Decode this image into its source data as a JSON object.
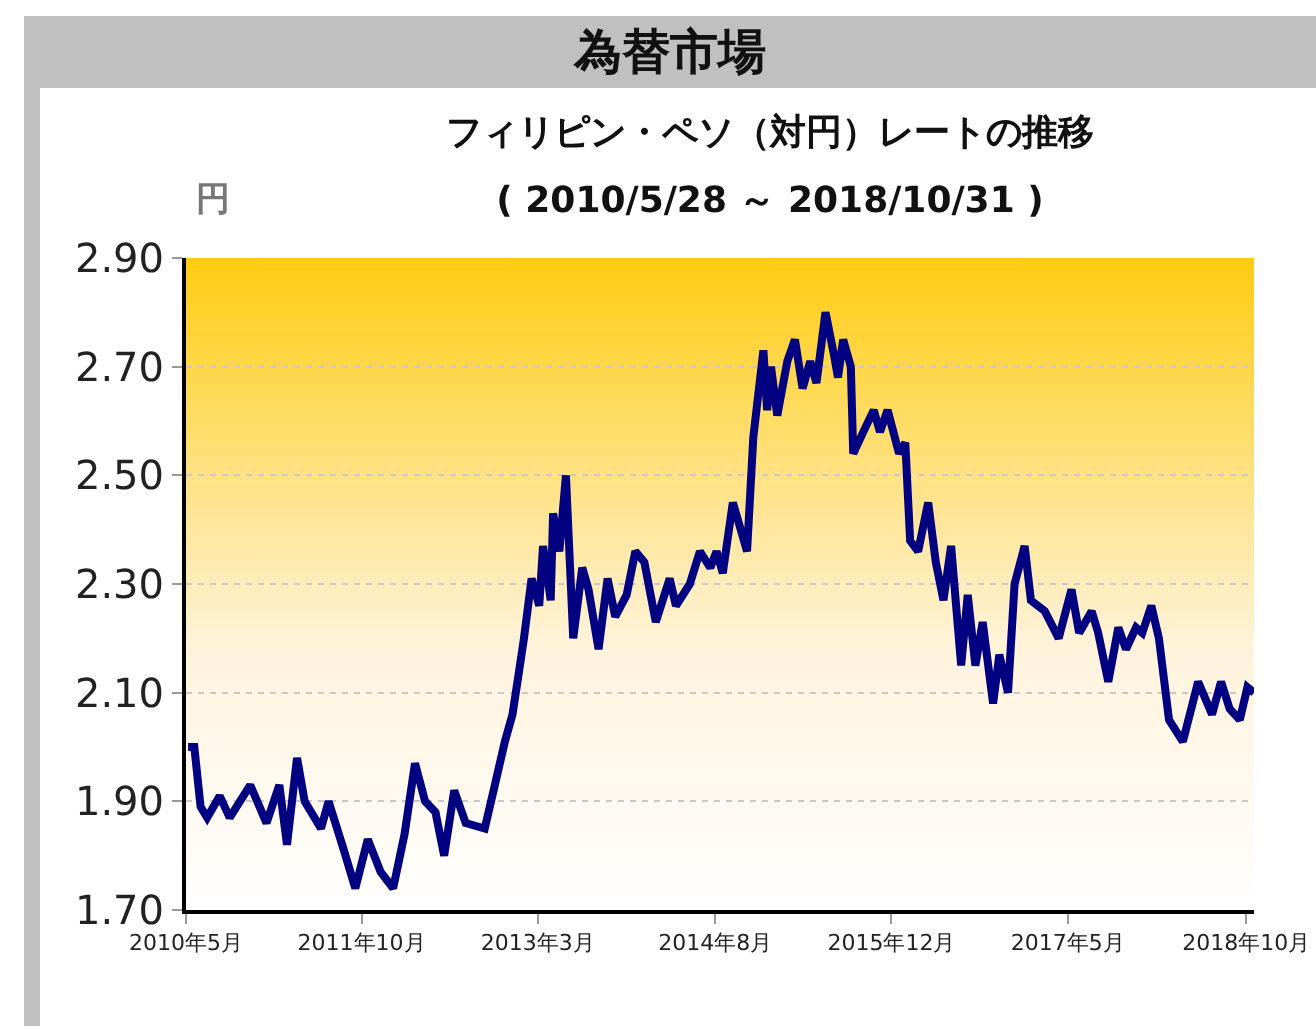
{
  "chart_data": {
    "type": "line",
    "title": "為替市場",
    "subtitle": "フィリピン・ペソ（対円）レートの推移\n( 2010/5/28 ～ 2018/10/31 )",
    "ylabel": "円",
    "x": [
      "2010-06-03",
      "2010-06-21",
      "2010-07-09",
      "2010-07-28",
      "2010-09-02",
      "2010-10-01",
      "2010-11-29",
      "2011-01-15",
      "2011-02-21",
      "2011-03-15",
      "2011-04-13",
      "2011-05-05",
      "2011-06-21",
      "2011-07-13",
      "2011-08-26",
      "2011-09-28",
      "2011-11-03",
      "2011-12-10",
      "2012-01-15",
      "2012-02-17",
      "2012-03-18",
      "2012-04-16",
      "2012-05-16",
      "2012-06-10",
      "2012-07-09",
      "2012-08-11",
      "2012-10-05",
      "2012-11-03",
      "2012-12-02",
      "2012-12-24",
      "2013-01-12",
      "2013-01-26",
      "2013-02-17",
      "2013-03-11",
      "2013-03-22",
      "2013-04-13",
      "2013-04-20",
      "2013-05-08",
      "2013-05-27",
      "2013-06-17",
      "2013-07-13",
      "2013-07-31",
      "2013-08-29",
      "2013-09-24",
      "2013-10-16",
      "2013-11-18",
      "2013-12-13",
      "2014-01-08",
      "2014-02-10",
      "2014-03-22",
      "2014-04-09",
      "2014-05-19",
      "2014-06-17",
      "2014-07-17",
      "2014-08-04",
      "2014-08-22",
      "2014-09-20",
      "2014-10-31",
      "2014-11-18",
      "2014-12-17",
      "2014-12-28",
      "2015-01-08",
      "2015-01-26",
      "2015-02-24",
      "2015-03-18",
      "2015-04-09",
      "2015-05-01",
      "2015-05-19",
      "2015-06-14",
      "2015-07-09",
      "2015-07-20",
      "2015-08-04",
      "2015-08-26",
      "2015-09-02",
      "2015-10-01",
      "2015-10-31",
      "2015-11-18",
      "2015-12-10",
      "2016-01-12",
      "2016-01-30",
      "2016-02-13",
      "2016-03-07",
      "2016-04-05",
      "2016-04-27",
      "2016-05-19",
      "2016-06-10",
      "2016-07-09",
      "2016-07-28",
      "2016-08-19",
      "2016-09-09",
      "2016-10-09",
      "2016-10-27",
      "2016-11-21",
      "2016-12-10",
      "2017-01-08",
      "2017-01-26",
      "2017-03-07",
      "2017-04-16",
      "2017-05-23",
      "2017-06-14",
      "2017-07-20",
      "2017-08-08",
      "2017-09-06",
      "2017-10-05",
      "2017-10-27",
      "2017-11-25",
      "2017-12-13",
      "2018-01-08",
      "2018-01-30",
      "2018-02-28",
      "2018-04-09",
      "2018-05-23",
      "2018-07-02",
      "2018-07-28",
      "2018-08-22",
      "2018-09-20",
      "2018-10-12",
      "2018-10-31"
    ],
    "series": [
      {
        "color": "#000080",
        "values": [
          2.0,
          2.0,
          1.89,
          1.87,
          1.91,
          1.87,
          1.93,
          1.86,
          1.93,
          1.82,
          1.98,
          1.9,
          1.85,
          1.9,
          1.81,
          1.74,
          1.83,
          1.77,
          1.74,
          1.84,
          1.97,
          1.9,
          1.88,
          1.8,
          1.92,
          1.86,
          1.85,
          1.93,
          2.01,
          2.06,
          2.14,
          2.2,
          2.31,
          2.26,
          2.37,
          2.27,
          2.43,
          2.36,
          2.5,
          2.2,
          2.33,
          2.29,
          2.18,
          2.31,
          2.24,
          2.28,
          2.36,
          2.34,
          2.23,
          2.31,
          2.26,
          2.3,
          2.36,
          2.33,
          2.36,
          2.32,
          2.45,
          2.36,
          2.57,
          2.73,
          2.62,
          2.7,
          2.61,
          2.71,
          2.75,
          2.66,
          2.71,
          2.67,
          2.8,
          2.72,
          2.68,
          2.75,
          2.7,
          2.54,
          2.58,
          2.62,
          2.58,
          2.62,
          2.54,
          2.56,
          2.38,
          2.36,
          2.45,
          2.34,
          2.27,
          2.37,
          2.15,
          2.28,
          2.15,
          2.23,
          2.08,
          2.17,
          2.1,
          2.3,
          2.37,
          2.27,
          2.25,
          2.2,
          2.29,
          2.21,
          2.25,
          2.21,
          2.12,
          2.22,
          2.18,
          2.22,
          2.21,
          2.26,
          2.2,
          2.05,
          2.01,
          2.12,
          2.06,
          2.12,
          2.07,
          2.05,
          2.11,
          2.1
        ]
      }
    ],
    "xlim": [
      "2010-05-28",
      "2018-10-31"
    ],
    "xticks": [
      {
        "value": "2010-05-28",
        "label": "2010年5月"
      },
      {
        "value": "2011-10-16",
        "label": "2011年10月"
      },
      {
        "value": "2013-03-07",
        "label": "2013年3月"
      },
      {
        "value": "2014-07-31",
        "label": "2014年8月"
      },
      {
        "value": "2015-12-21",
        "label": "2015年12月"
      },
      {
        "value": "2017-05-12",
        "label": "2017年5月"
      },
      {
        "value": "2018-10-09",
        "label": "2018年10月"
      }
    ],
    "ylim": [
      1.7,
      2.9
    ],
    "yticks": [
      {
        "value": 1.7,
        "label": "1.70"
      },
      {
        "value": 1.9,
        "label": "1.90"
      },
      {
        "value": 2.1,
        "label": "2.10"
      },
      {
        "value": 2.3,
        "label": "2.30"
      },
      {
        "value": 2.5,
        "label": "2.50"
      },
      {
        "value": 2.7,
        "label": "2.70"
      },
      {
        "value": 2.9,
        "label": "2.90"
      }
    ],
    "grid": "y",
    "marker": "none",
    "line_style": "solid"
  }
}
